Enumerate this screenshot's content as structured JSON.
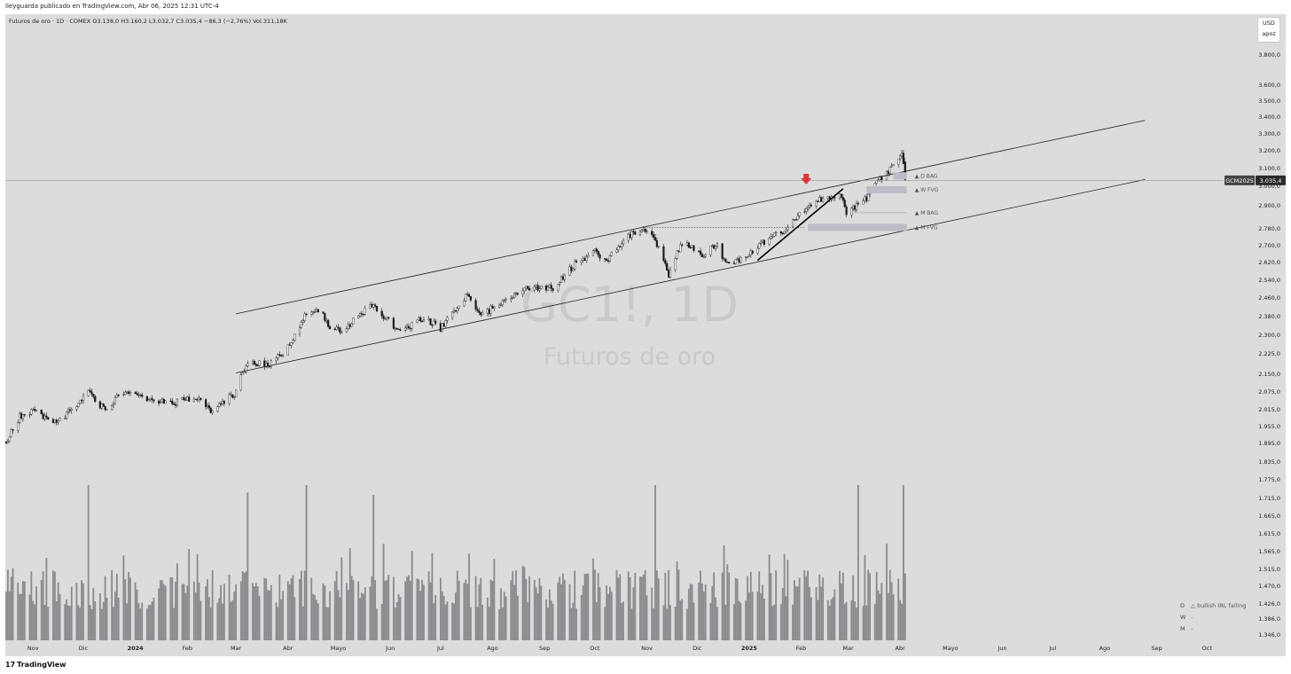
{
  "header": {
    "published": "lleyguarda publicado en TradingView.com, Abr 06, 2025 12:31 UTC-4",
    "symbol_info": "Futuros de oro · 1D · COMEX   O3.138,0   H3.160,2   L3.032,7   C3.035,4   −86,3 (−2,76%)   Vol.311,18K"
  },
  "currency_box": {
    "currency": "USD",
    "mode": "apoz"
  },
  "watermark": {
    "ticker": "GC1!, 1D",
    "name": "Futuros de oro"
  },
  "footer": {
    "brand": "TradingView",
    "logo_glyph": "17"
  },
  "price_axis": {
    "labels": [
      "3.800,0",
      "3.600,0",
      "3.500,0",
      "3.400,0",
      "3.300,0",
      "3.200,0",
      "3.100,0",
      "3.000,0",
      "2.900,0",
      "2.780,0",
      "2.700,0",
      "2.620,0",
      "2.540,0",
      "2.460,0",
      "2.380,0",
      "2.300,0",
      "2.225,0",
      "2.150,0",
      "2.075,0",
      "2.015,0",
      "1.955,0",
      "1.895,0",
      "1.835,0",
      "1.775,0",
      "1.715,0",
      "1.665,0",
      "1.615,0",
      "1.565,0",
      "1.515,0",
      "1.470,0",
      "1.426,0",
      "1.386,0",
      "1.346,0"
    ],
    "current_symbol": "GCM2025",
    "current_price": "3.035,4"
  },
  "zones": [
    {
      "label": "▲ D BAG",
      "price": 3060
    },
    {
      "label": "▲ W FVG",
      "price": 2985
    },
    {
      "label": "▲ M BAG",
      "price": 2865
    },
    {
      "label": "▲ M FVG",
      "price": 2790
    }
  ],
  "status_table": [
    {
      "tf": "D",
      "text": "△ bullish IRL failing"
    },
    {
      "tf": "W",
      "text": "-"
    },
    {
      "tf": "M",
      "text": "-"
    }
  ],
  "colors": {
    "background": "#dcdcdc",
    "candle_up": "#ffffff",
    "candle_down": "#1a1a1a",
    "volume": "#8a8a8e",
    "arrow": "#e03535",
    "zone": "#bcbcc4"
  },
  "chart_data": {
    "type": "candlestick",
    "symbol": "GC1!",
    "interval": "1D",
    "exchange": "COMEX",
    "last_bar": {
      "open": 3138.0,
      "high": 3160.2,
      "low": 3032.7,
      "close": 3035.4,
      "change": -86.3,
      "change_pct": -2.76,
      "volume": "311,18K"
    },
    "x_labels": [
      "Nov",
      "Dic",
      "2024",
      "Feb",
      "Mar",
      "Abr",
      "Mayo",
      "Jun",
      "Jul",
      "Ago",
      "Sep",
      "Oct",
      "Nov",
      "Dic",
      "2025",
      "Feb",
      "Mar",
      "Abr",
      "Mayo",
      "Jun",
      "Jul",
      "Ago",
      "Sep",
      "Oct"
    ],
    "close_path": [
      [
        "2023-10-16",
        1900
      ],
      [
        "2023-10-24",
        1990
      ],
      [
        "2023-11-01",
        2010
      ],
      [
        "2023-11-13",
        1960
      ],
      [
        "2023-11-24",
        2010
      ],
      [
        "2023-12-04",
        2085
      ],
      [
        "2023-12-13",
        2015
      ],
      [
        "2023-12-27",
        2085
      ],
      [
        "2024-01-08",
        2050
      ],
      [
        "2024-01-22",
        2035
      ],
      [
        "2024-02-06",
        2060
      ],
      [
        "2024-02-14",
        2010
      ],
      [
        "2024-02-29",
        2070
      ],
      [
        "2024-03-08",
        2190
      ],
      [
        "2024-03-21",
        2180
      ],
      [
        "2024-04-01",
        2250
      ],
      [
        "2024-04-12",
        2390
      ],
      [
        "2024-04-19",
        2410
      ],
      [
        "2024-04-26",
        2340
      ],
      [
        "2024-05-03",
        2310
      ],
      [
        "2024-05-20",
        2430
      ],
      [
        "2024-05-31",
        2360
      ],
      [
        "2024-06-07",
        2310
      ],
      [
        "2024-06-21",
        2375
      ],
      [
        "2024-07-01",
        2330
      ],
      [
        "2024-07-17",
        2470
      ],
      [
        "2024-07-25",
        2380
      ],
      [
        "2024-08-06",
        2440
      ],
      [
        "2024-08-20",
        2510
      ],
      [
        "2024-09-06",
        2500
      ],
      [
        "2024-09-20",
        2620
      ],
      [
        "2024-10-01",
        2670
      ],
      [
        "2024-10-08",
        2630
      ],
      [
        "2024-10-22",
        2750
      ],
      [
        "2024-10-30",
        2790
      ],
      [
        "2024-11-05",
        2750
      ],
      [
        "2024-11-14",
        2560
      ],
      [
        "2024-11-22",
        2720
      ],
      [
        "2024-12-05",
        2650
      ],
      [
        "2024-12-12",
        2710
      ],
      [
        "2024-12-19",
        2610
      ],
      [
        "2024-12-30",
        2640
      ],
      [
        "2025-01-10",
        2720
      ],
      [
        "2025-01-24",
        2790
      ],
      [
        "2025-02-03",
        2880
      ],
      [
        "2025-02-11",
        2930
      ],
      [
        "2025-02-24",
        2960
      ],
      [
        "2025-02-28",
        2870
      ],
      [
        "2025-03-10",
        2920
      ],
      [
        "2025-03-20",
        3040
      ],
      [
        "2025-03-31",
        3150
      ],
      [
        "2025-04-02",
        3180
      ],
      [
        "2025-04-03",
        3120
      ],
      [
        "2025-04-04",
        3035
      ]
    ],
    "volume_axis_note": "volume histogram in lower pane, peak near 2024-04-12 and 2025-04-03",
    "channel": {
      "upper": [
        [
          "2024-03-01",
          2390
        ],
        [
          "2025-08-25",
          3380
        ]
      ],
      "lower": [
        [
          "2024-03-01",
          2150
        ],
        [
          "2025-08-25",
          3040
        ]
      ]
    },
    "drawn_trendline": [
      [
        "2025-01-06",
        2630
      ],
      [
        "2025-02-26",
        2990
      ]
    ],
    "dotted_level": {
      "price": 2790,
      "from": "2024-10-30",
      "to": "2025-02-03"
    },
    "marker": {
      "date": "2025-02-04",
      "type": "down-arrow"
    },
    "y_scale": "log",
    "grid": false
  }
}
